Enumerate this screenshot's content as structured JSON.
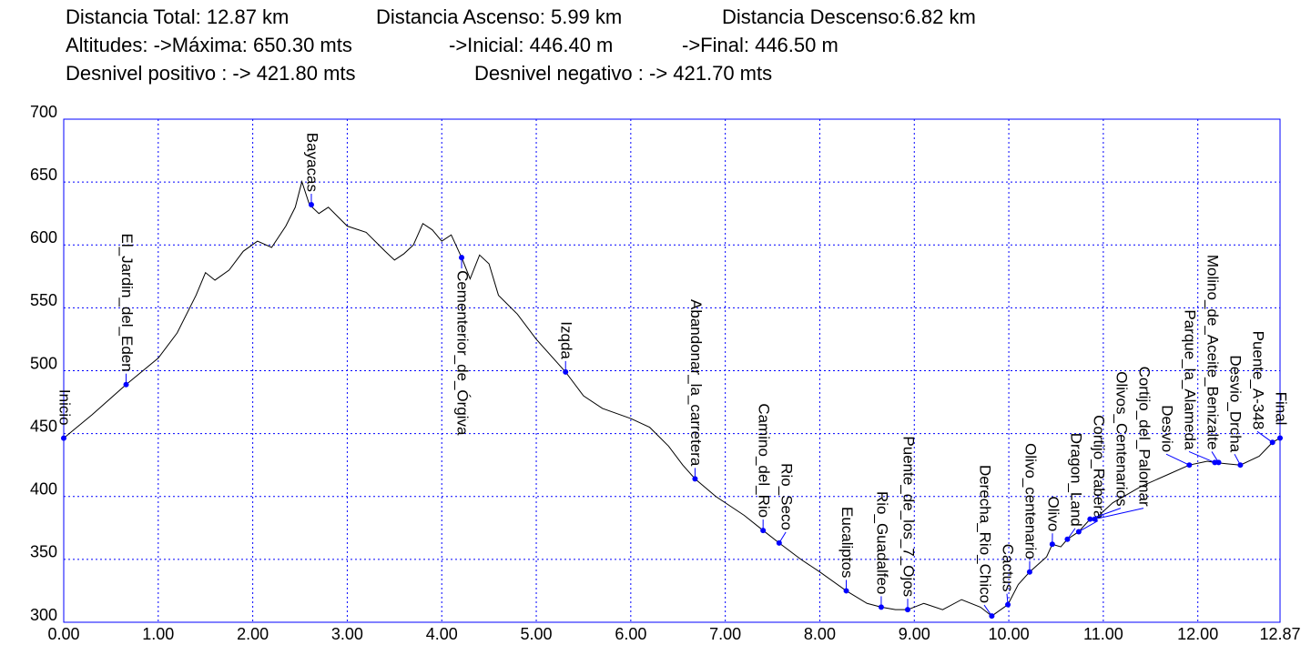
{
  "chart_data": {
    "type": "line",
    "header": [
      [
        "Distancia Total: 12.87 km",
        "Distancia Ascenso: 5.99 km",
        "Distancia Descenso:6.82 km"
      ],
      [
        "Altitudes: ->Máxima: 650.30 mts",
        "->Inicial: 446.40 m",
        "->Final: 446.50 m"
      ],
      [
        "Desnivel positivo : -> 421.80 mts",
        "Desnivel negativo : -> 421.70 mts"
      ]
    ],
    "x": [
      0,
      0.3,
      0.66,
      1.0,
      1.2,
      1.4,
      1.5,
      1.6,
      1.75,
      1.9,
      2.05,
      2.2,
      2.35,
      2.45,
      2.52,
      2.6,
      2.7,
      2.8,
      3.0,
      3.2,
      3.4,
      3.5,
      3.6,
      3.7,
      3.8,
      3.9,
      4.0,
      4.1,
      4.21,
      4.3,
      4.4,
      4.5,
      4.6,
      4.8,
      5.0,
      5.31,
      5.5,
      5.7,
      6.0,
      6.2,
      6.4,
      6.55,
      6.68,
      6.9,
      7.2,
      7.4,
      7.57,
      7.8,
      8.0,
      8.28,
      8.5,
      8.65,
      8.8,
      8.93,
      9.1,
      9.3,
      9.5,
      9.7,
      9.82,
      9.99,
      10.1,
      10.22,
      10.4,
      10.46,
      10.55,
      10.62,
      10.74,
      10.86,
      10.91,
      11.1,
      11.4,
      11.7,
      11.91,
      12.1,
      12.18,
      12.3,
      12.45,
      12.65,
      12.79,
      12.87
    ],
    "series": [
      {
        "color": "#000000",
        "values": [
          446.4,
          465,
          489,
          510,
          530,
          560,
          578,
          572,
          580,
          595,
          603,
          598,
          615,
          630,
          650.3,
          632,
          625,
          630,
          615,
          610,
          595,
          588,
          593,
          600,
          617,
          612,
          603,
          608,
          590,
          573,
          592,
          585,
          560,
          545,
          525,
          499,
          480,
          470,
          462,
          455,
          440,
          425,
          414,
          400,
          385,
          373,
          363,
          350,
          340,
          325,
          315,
          312,
          310,
          310,
          315,
          310,
          318,
          312,
          305,
          314,
          330,
          340,
          352,
          362,
          360,
          366,
          372,
          382,
          382,
          395,
          408,
          418,
          425,
          428,
          427,
          426,
          425,
          432,
          443,
          446.5
        ]
      }
    ],
    "waypoints": {
      "color": "#0000ff",
      "names": [
        "Inicio",
        "El_Jardin_del_Eden",
        "Bayacas",
        "Cementerior_de_Órgiva",
        "Izqda",
        "Abandonar_la_carretera",
        "Camino_del_Rio",
        "Rio_Seco",
        "Eucaliptos",
        "Rio_Guadalfeo",
        "Puente_de_los_7_Ojos",
        "Derecha_Rio_Chico",
        "Cactus",
        "Olivo_centenario",
        "Olivo",
        "Dragon_Land",
        "Cortijo_Rabera",
        "Olivos_Centenarios",
        "Cortijo_del_Palomar",
        "Desvio",
        "Parque_la_Alameda",
        "Molino_de_Aceite_Benizalte",
        "Desvio_Drcha",
        "Puente_A-348",
        "Final"
      ],
      "x": [
        0,
        0.66,
        2.62,
        4.21,
        5.31,
        6.68,
        7.4,
        7.57,
        8.28,
        8.65,
        8.93,
        9.82,
        9.99,
        10.22,
        10.46,
        10.62,
        10.74,
        10.86,
        10.91,
        11.91,
        12.18,
        12.22,
        12.45,
        12.79,
        12.87
      ],
      "values": [
        446.4,
        489,
        632,
        590,
        499,
        414,
        373,
        363,
        325,
        312,
        310,
        305,
        314,
        340,
        362,
        366,
        372,
        382,
        382,
        425,
        427,
        427,
        425,
        443,
        446.5
      ]
    },
    "xlim": [
      0,
      12.87
    ],
    "xticks": [
      {
        "value": 0,
        "label": "0.00"
      },
      {
        "value": 1,
        "label": "1.00"
      },
      {
        "value": 2,
        "label": "2.00"
      },
      {
        "value": 3,
        "label": "3.00"
      },
      {
        "value": 4,
        "label": "4.00"
      },
      {
        "value": 5,
        "label": "5.00"
      },
      {
        "value": 6,
        "label": "6.00"
      },
      {
        "value": 7,
        "label": "7.00"
      },
      {
        "value": 8,
        "label": "8.00"
      },
      {
        "value": 9,
        "label": "9.00"
      },
      {
        "value": 10,
        "label": "10.00"
      },
      {
        "value": 11,
        "label": "11.00"
      },
      {
        "value": 12,
        "label": "12.00"
      },
      {
        "value": 12.87,
        "label": "12.87"
      }
    ],
    "ylim": [
      300,
      700
    ],
    "yticks": [
      300,
      350,
      400,
      450,
      500,
      550,
      600,
      650,
      700
    ],
    "grid": true,
    "grid_color": "#0000ff"
  }
}
